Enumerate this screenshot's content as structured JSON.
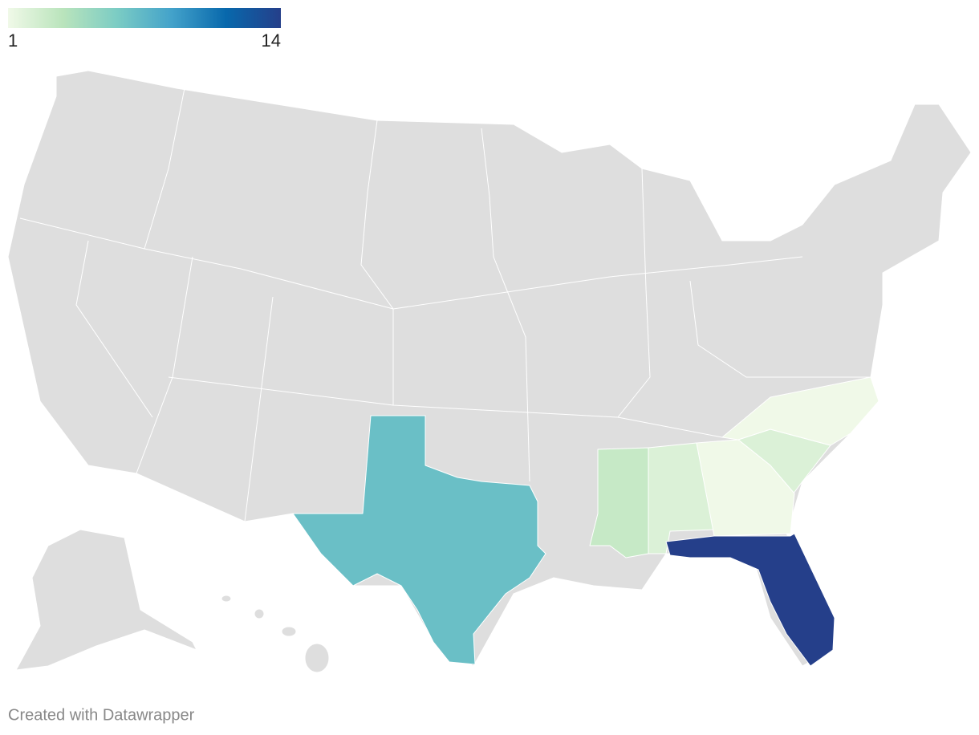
{
  "chart_data": {
    "type": "choropleth",
    "colorlim": [
      1,
      14
    ],
    "colorticks": [
      1,
      14
    ],
    "colors": [
      "#f0f9e8",
      "#bae4bc",
      "#7bccc4",
      "#43a2ca",
      "#0868ac",
      "#253f8a"
    ],
    "base_color": "#dedede",
    "regions": [
      {
        "value": 7
      },
      {
        "value": 3
      },
      {
        "value": 2
      },
      {
        "value": 2
      },
      {
        "value": 1
      },
      {
        "value": 1
      },
      {
        "value": 14
      }
    ],
    "credit": "Created with Datawrapper"
  }
}
